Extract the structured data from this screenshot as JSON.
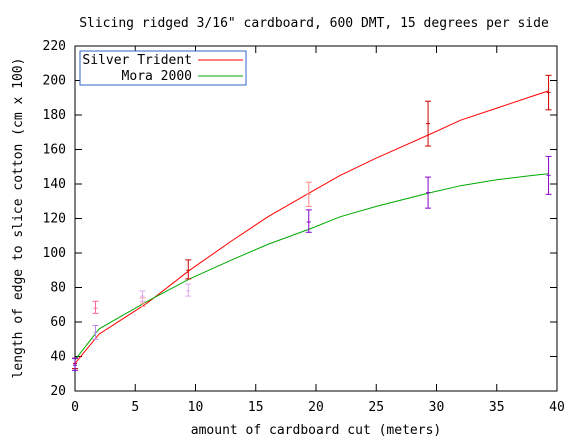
{
  "chart_data": {
    "type": "line",
    "title": "Slicing ridged 3/16\" cardboard, 600 DMT, 15 degrees per side",
    "xlabel": "amount of cardboard cut (meters)",
    "ylabel": "length of edge to slice cotton (cm x 100)",
    "xlim": [
      0,
      40
    ],
    "ylim": [
      20,
      220
    ],
    "xticks": [
      "0",
      "5",
      "10",
      "15",
      "20",
      "25",
      "30",
      "35",
      "40"
    ],
    "yticks": [
      "20",
      "40",
      "60",
      "80",
      "100",
      "120",
      "140",
      "160",
      "180",
      "200",
      "220"
    ],
    "grid": false,
    "legend_placement": "top-left",
    "series": [
      {
        "name": "Silver Trident",
        "color": "#ff0000",
        "x": [
          0,
          2,
          4,
          6,
          9.5,
          13,
          16,
          19.5,
          22,
          25,
          29.5,
          32,
          35,
          38,
          39.3
        ],
        "y": [
          36,
          53,
          62,
          71,
          90,
          107,
          121,
          135,
          145,
          155,
          169,
          177,
          184,
          191,
          194
        ],
        "points": [
          {
            "x": 0,
            "y": 36,
            "ylow": 33,
            "yhigh": 39,
            "color": "#cc0000"
          },
          {
            "x": 1.7,
            "y": 68,
            "ylow": 65,
            "yhigh": 72,
            "color": "#ff6699"
          },
          {
            "x": 5.6,
            "y": 71,
            "ylow": 69,
            "yhigh": 74,
            "color": "#ff9999"
          },
          {
            "x": 9.4,
            "y": 90,
            "ylow": 85,
            "yhigh": 96,
            "color": "#cc0000"
          },
          {
            "x": 19.4,
            "y": 134,
            "ylow": 127,
            "yhigh": 141,
            "color": "#ff8888"
          },
          {
            "x": 29.3,
            "y": 175,
            "ylow": 162,
            "yhigh": 188,
            "color": "#cc0000"
          },
          {
            "x": 39.3,
            "y": 193,
            "ylow": 183,
            "yhigh": 203,
            "color": "#cc0000"
          }
        ]
      },
      {
        "name": "Mora 2000",
        "color": "#00aa00",
        "x": [
          0,
          2,
          4,
          6,
          9.5,
          13,
          16,
          19.5,
          22,
          25,
          29.5,
          32,
          35,
          38,
          39.3
        ],
        "y": [
          38,
          56,
          64,
          72,
          85,
          96,
          105,
          114,
          121,
          127,
          135,
          139,
          142.5,
          145,
          146
        ],
        "points": [
          {
            "x": 0,
            "y": 35,
            "ylow": 32,
            "yhigh": 39,
            "color": "#6600cc"
          },
          {
            "x": 1.7,
            "y": 54,
            "ylow": 50,
            "yhigh": 58,
            "color": "#bb88ee"
          },
          {
            "x": 5.6,
            "y": 75,
            "ylow": 72,
            "yhigh": 78,
            "color": "#ddaaee"
          },
          {
            "x": 9.4,
            "y": 78,
            "ylow": 75,
            "yhigh": 82,
            "color": "#ddaaee"
          },
          {
            "x": 19.4,
            "y": 118,
            "ylow": 112,
            "yhigh": 125,
            "color": "#8800cc"
          },
          {
            "x": 29.3,
            "y": 135,
            "ylow": 126,
            "yhigh": 144,
            "color": "#8800cc"
          },
          {
            "x": 39.3,
            "y": 145,
            "ylow": 134,
            "yhigh": 156,
            "color": "#8800cc"
          }
        ]
      }
    ]
  }
}
